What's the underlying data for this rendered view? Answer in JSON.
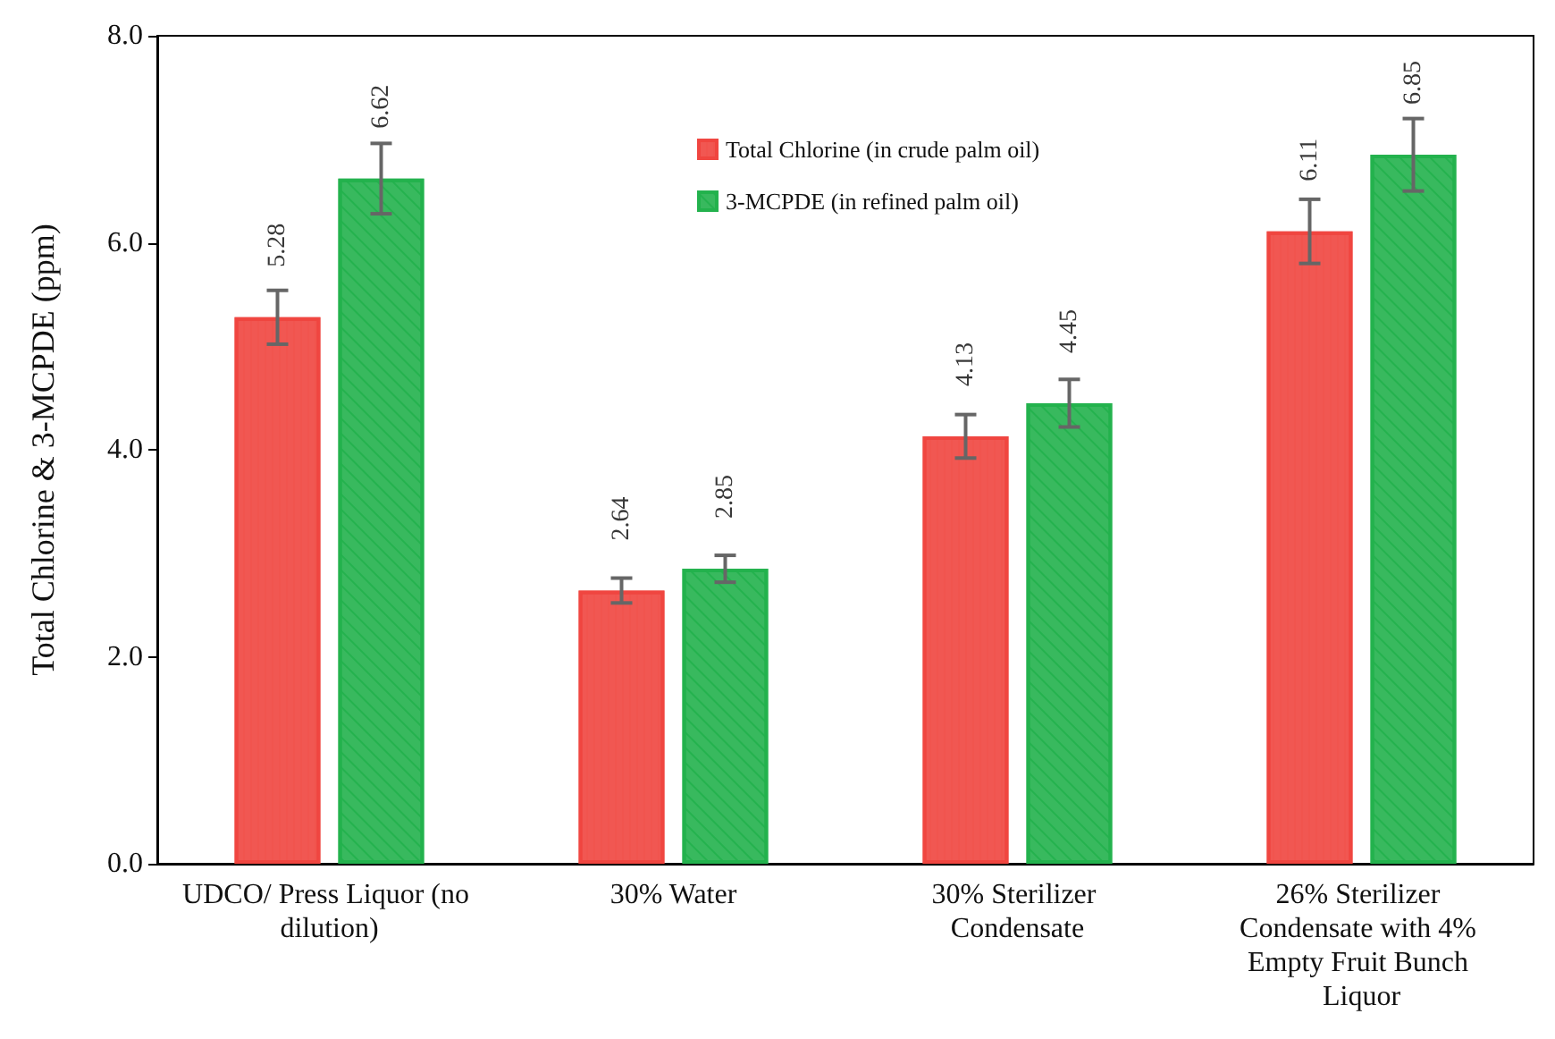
{
  "chart_data": {
    "type": "bar",
    "ylabel": "Total Chlorine & 3-MCPDE (ppm)",
    "categories": [
      "UDCO/ Press Liquor (no dilution)",
      "30% Water",
      "30% Sterilizer Condensate",
      "26% Sterilizer Condensate with 4% Empty Fruit Bunch Liquor"
    ],
    "series": [
      {
        "name": "Total Chlorine (in crude palm oil)",
        "color": "#f0453f",
        "values": [
          5.28,
          2.64,
          4.13,
          6.11
        ],
        "errors": [
          0.26,
          0.12,
          0.21,
          0.31
        ]
      },
      {
        "name": "3-MCPDE (in refined palm oil)",
        "color": "#22b14c",
        "values": [
          6.62,
          2.85,
          4.45,
          6.85
        ],
        "errors": [
          0.34,
          0.13,
          0.23,
          0.35
        ]
      }
    ],
    "ylim": [
      0,
      8
    ],
    "yticks": [
      {
        "value": 0,
        "label": "0.0"
      },
      {
        "value": 2,
        "label": "2.0"
      },
      {
        "value": 4,
        "label": "4.0"
      },
      {
        "value": 6,
        "label": "6.0"
      },
      {
        "value": 8,
        "label": "8.0"
      }
    ],
    "data_labels": true,
    "grid": false,
    "legend": "top"
  }
}
